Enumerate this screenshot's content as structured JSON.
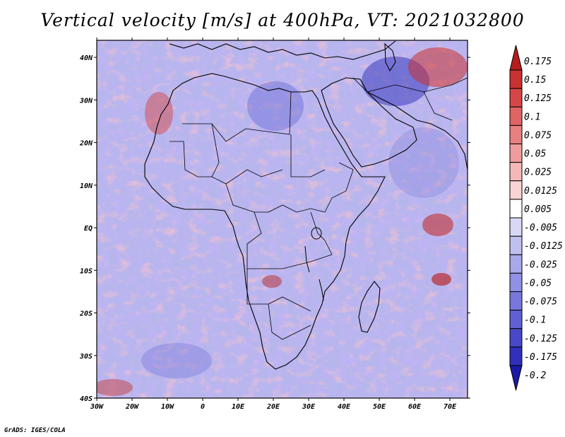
{
  "title": "Vertical velocity [m/s] at 400hPa, VT: 2021032800",
  "credit": "GrADS: IGES/COLA",
  "axes": {
    "lon_labels": [
      "30W",
      "20W",
      "10W",
      "0",
      "10E",
      "20E",
      "30E",
      "40E",
      "50E",
      "60E",
      "70E"
    ],
    "lat_labels": [
      "40N",
      "30N",
      "20N",
      "10N",
      "EQ",
      "10S",
      "20S",
      "30S",
      "40S"
    ]
  },
  "colorbar": {
    "levels": [
      "0.175",
      "0.15",
      "0.125",
      "0.1",
      "0.075",
      "0.05",
      "0.025",
      "0.0125",
      "0.005",
      "-0.005",
      "-0.0125",
      "-0.025",
      "-0.05",
      "-0.075",
      "-0.1",
      "-0.125",
      "-0.175",
      "-0.2"
    ],
    "colors": [
      "#b41e1e",
      "#c83232",
      "#d74646",
      "#e06464",
      "#e88080",
      "#f09c9c",
      "#f5b8b8",
      "#fad4d4",
      "#ffffff",
      "#d8d8f6",
      "#c0c0f0",
      "#a8a8ea",
      "#9090e4",
      "#7878dc",
      "#6060d4",
      "#4848c8",
      "#3030bc",
      "#1a1aa8"
    ]
  }
}
